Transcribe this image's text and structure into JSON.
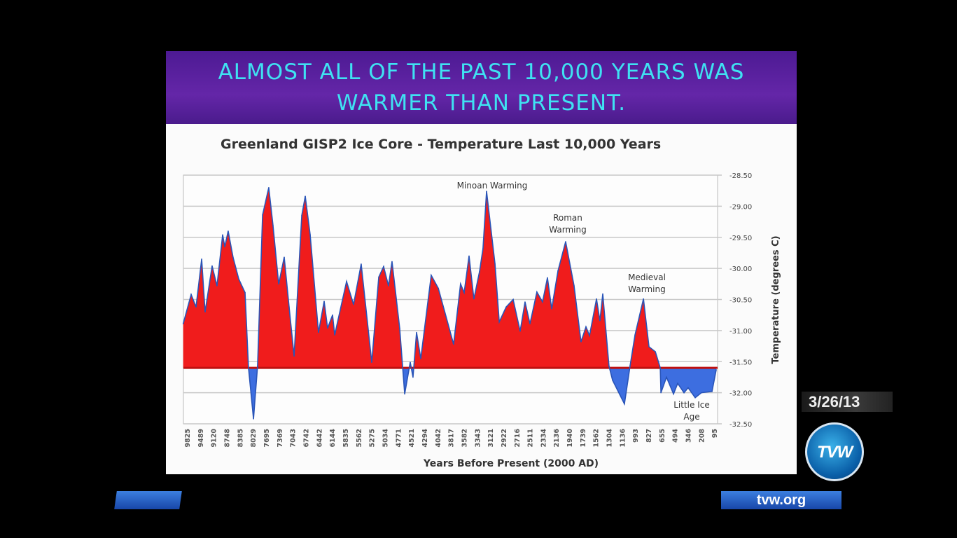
{
  "slide": {
    "headline_line1": "ALMOST ALL OF THE PAST 10,000 YEARS WAS",
    "headline_line2": "WARMER THAN PRESENT."
  },
  "overlay": {
    "date": "3/26/13",
    "logo_text": "TVW",
    "site": "tvw.org"
  },
  "colors": {
    "above": "#f01c1c",
    "below": "#3d6ee0",
    "line": "#2a55b8",
    "header": "#5a22a0",
    "headline": "#3fe2f2"
  },
  "chart_data": {
    "type": "area",
    "title": "Greenland GISP2 Ice Core - Temperature  Last 10,000 Years",
    "xlabel": "Years Before Present (2000 AD)",
    "ylabel": "Temperature (degrees C)",
    "x_tick_labels": [
      "9825",
      "9489",
      "9120",
      "8748",
      "8385",
      "8029",
      "7695",
      "7369",
      "7043",
      "6742",
      "6442",
      "6144",
      "5835",
      "5562",
      "5275",
      "5034",
      "4771",
      "4521",
      "4294",
      "4042",
      "3817",
      "3582",
      "3343",
      "3121",
      "2922",
      "2716",
      "2511",
      "2334",
      "2136",
      "1940",
      "1739",
      "1562",
      "1304",
      "1136",
      "993",
      "827",
      "655",
      "494",
      "346",
      "208",
      "95"
    ],
    "y_ticks": [
      "-28.50",
      "-29.00",
      "-29.50",
      "-30.00",
      "-30.50",
      "-31.00",
      "-31.50",
      "-32.00",
      "-32.50"
    ],
    "ylim": [
      -32.5,
      -28.5
    ],
    "y_axis_side": "right",
    "baseline": -31.6,
    "grid": true,
    "annotations": [
      {
        "text": [
          "Minoan Warming"
        ],
        "year": 3181
      },
      {
        "text": [
          "Roman",
          "Warming"
        ],
        "year": 1993
      },
      {
        "text": [
          "Medieval",
          "Warming"
        ],
        "year": 888
      },
      {
        "text": [
          "Little Ice",
          "Age"
        ],
        "year": 343
      }
    ],
    "points": [
      [
        9920,
        -30.89
      ],
      [
        9717,
        -30.42
      ],
      [
        9593,
        -30.62
      ],
      [
        9445,
        -29.85
      ],
      [
        9349,
        -30.7
      ],
      [
        9153,
        -29.96
      ],
      [
        9016,
        -30.28
      ],
      [
        8856,
        -29.46
      ],
      [
        8796,
        -29.65
      ],
      [
        8701,
        -29.4
      ],
      [
        8567,
        -29.82
      ],
      [
        8410,
        -30.17
      ],
      [
        8239,
        -30.39
      ],
      [
        8146,
        -31.6
      ],
      [
        8012,
        -32.42
      ],
      [
        7909,
        -31.57
      ],
      [
        7782,
        -29.14
      ],
      [
        7627,
        -28.7
      ],
      [
        7522,
        -29.31
      ],
      [
        7382,
        -30.25
      ],
      [
        7245,
        -29.82
      ],
      [
        7124,
        -30.62
      ],
      [
        7004,
        -31.41
      ],
      [
        6829,
        -29.15
      ],
      [
        6749,
        -28.84
      ],
      [
        6637,
        -29.46
      ],
      [
        6448,
        -31.03
      ],
      [
        6320,
        -30.53
      ],
      [
        6242,
        -30.96
      ],
      [
        6129,
        -30.75
      ],
      [
        6079,
        -31.07
      ],
      [
        5805,
        -30.21
      ],
      [
        5660,
        -30.58
      ],
      [
        5499,
        -29.93
      ],
      [
        5270,
        -31.51
      ],
      [
        5142,
        -30.14
      ],
      [
        5053,
        -29.97
      ],
      [
        4958,
        -30.28
      ],
      [
        4887,
        -29.89
      ],
      [
        4736,
        -30.96
      ],
      [
        4641,
        -32.02
      ],
      [
        4536,
        -31.51
      ],
      [
        4487,
        -31.75
      ],
      [
        4426,
        -31.03
      ],
      [
        4353,
        -31.45
      ],
      [
        4160,
        -30.11
      ],
      [
        4026,
        -30.32
      ],
      [
        3763,
        -31.22
      ],
      [
        3639,
        -30.25
      ],
      [
        3575,
        -30.39
      ],
      [
        3486,
        -29.8
      ],
      [
        3398,
        -30.49
      ],
      [
        3299,
        -30.05
      ],
      [
        3241,
        -29.68
      ],
      [
        3181,
        -28.76
      ],
      [
        3047,
        -29.93
      ],
      [
        2983,
        -30.86
      ],
      [
        2877,
        -30.62
      ],
      [
        2768,
        -30.5
      ],
      [
        2659,
        -31.01
      ],
      [
        2583,
        -30.54
      ],
      [
        2507,
        -30.89
      ],
      [
        2414,
        -30.38
      ],
      [
        2338,
        -30.54
      ],
      [
        2265,
        -30.15
      ],
      [
        2201,
        -30.65
      ],
      [
        2107,
        -30.04
      ],
      [
        1993,
        -29.57
      ],
      [
        1866,
        -30.28
      ],
      [
        1760,
        -31.18
      ],
      [
        1691,
        -30.94
      ],
      [
        1643,
        -31.08
      ],
      [
        1544,
        -30.49
      ],
      [
        1477,
        -30.84
      ],
      [
        1421,
        -30.41
      ],
      [
        1301,
        -31.57
      ],
      [
        1255,
        -31.8
      ],
      [
        1109,
        -32.18
      ],
      [
        1047,
        -31.56
      ],
      [
        994,
        -31.07
      ],
      [
        888,
        -30.49
      ],
      [
        818,
        -31.26
      ],
      [
        735,
        -31.34
      ],
      [
        671,
        -31.6
      ],
      [
        662,
        -32.0
      ],
      [
        594,
        -31.75
      ],
      [
        508,
        -32.02
      ],
      [
        460,
        -31.85
      ],
      [
        389,
        -32.0
      ],
      [
        343,
        -31.92
      ],
      [
        269,
        -32.08
      ],
      [
        205,
        -32.0
      ],
      [
        114,
        -31.98
      ],
      [
        78,
        -31.63
      ]
    ]
  }
}
